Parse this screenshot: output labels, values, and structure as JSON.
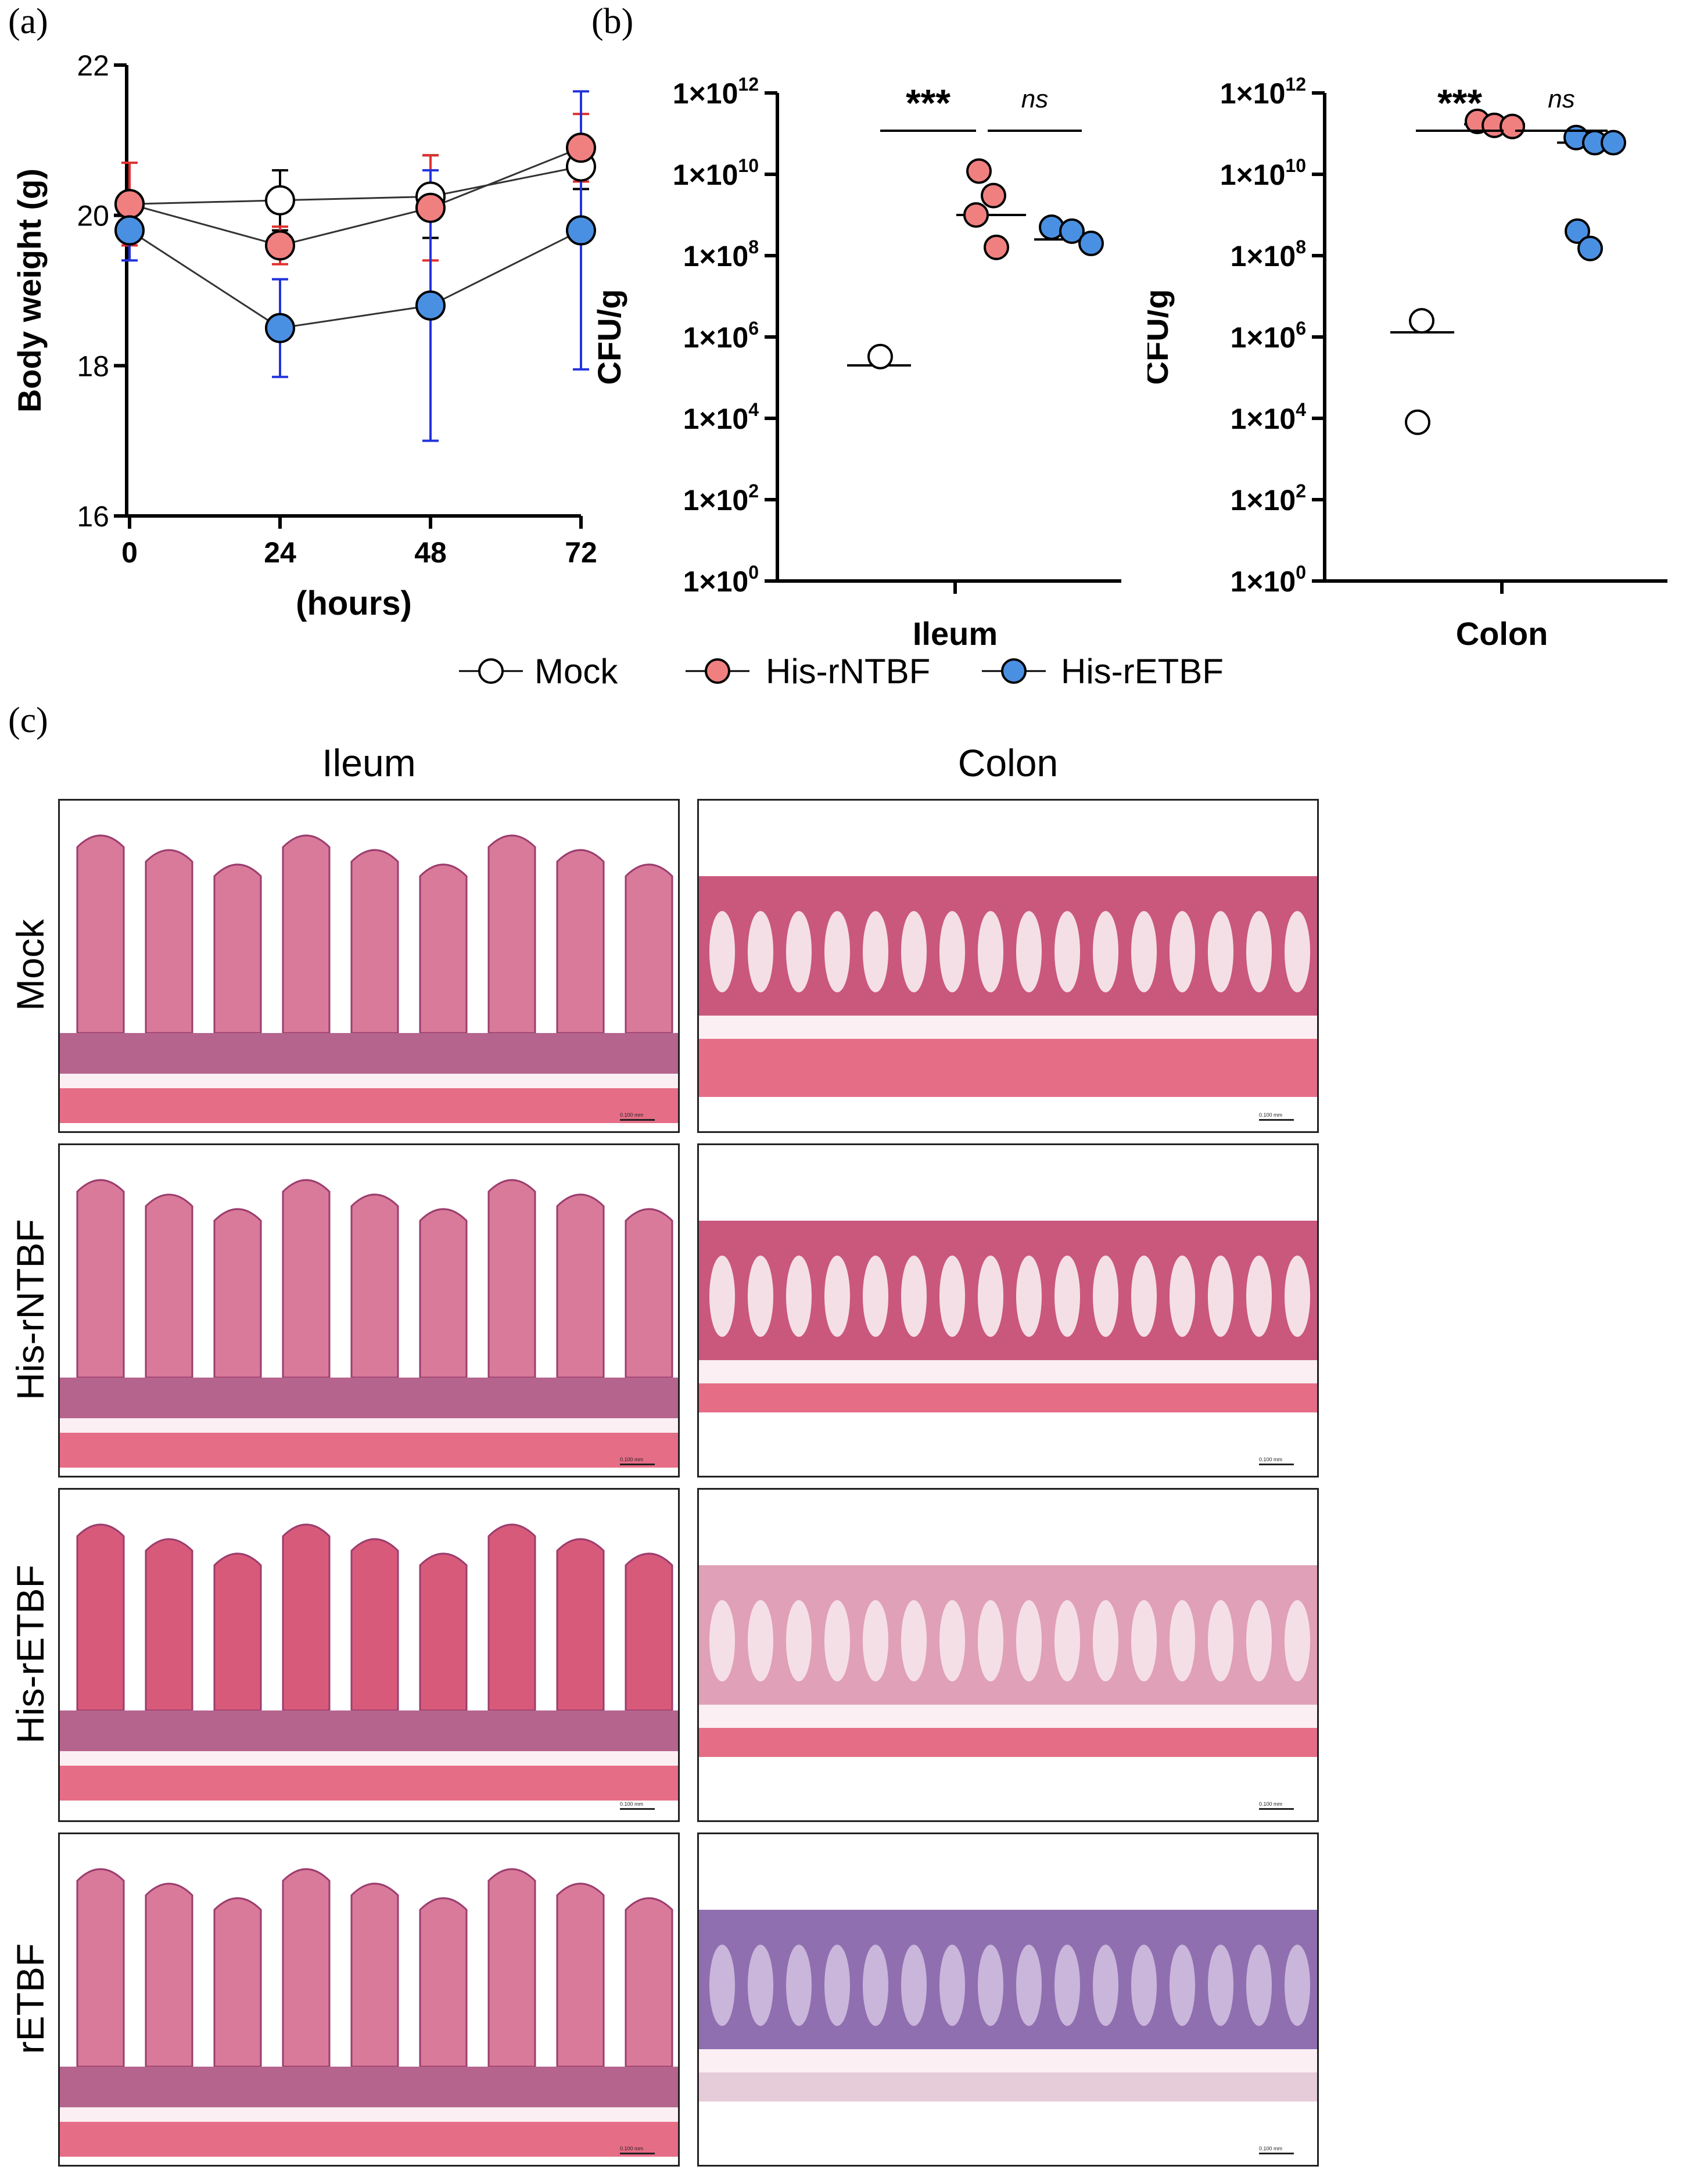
{
  "panels": {
    "a": "(a)",
    "b": "(b)",
    "c": "(c)"
  },
  "chart_data": [
    {
      "type": "line",
      "panel": "(a)",
      "ylabel": "Body weight (g)",
      "xlabel": "(hours)",
      "x": [
        0,
        24,
        48,
        72
      ],
      "xticks": [
        "0",
        "24",
        "48",
        "72"
      ],
      "yticks": [
        "16",
        "18",
        "20",
        "22"
      ],
      "ylim": [
        16,
        22
      ],
      "series": [
        {
          "name": "Mock",
          "color": "#ffffff",
          "errcolor": "#000000",
          "values": [
            20.15,
            20.2,
            20.25,
            20.65
          ],
          "err": [
            0.05,
            0.4,
            0.55,
            0.3
          ]
        },
        {
          "name": "His-rNTBF",
          "color": "#f08080",
          "errcolor": "#e03030",
          "values": [
            20.15,
            19.6,
            20.1,
            20.9
          ],
          "err": [
            0.55,
            0.25,
            0.7,
            0.45
          ]
        },
        {
          "name": "His-rETBF",
          "color": "#4a90e2",
          "errcolor": "#2233dd",
          "values": [
            19.8,
            18.5,
            18.8,
            19.8
          ],
          "err": [
            0.4,
            0.65,
            1.8,
            1.85
          ]
        }
      ]
    },
    {
      "type": "scatter",
      "panel": "(b)",
      "xlabel": "Ileum",
      "ylabel": "CFU/g",
      "yscale": "log10",
      "ylim": [
        1,
        1000000000000.0
      ],
      "yticks": [
        "1×10^0",
        "1×10^2",
        "1×10^4",
        "1×10^6",
        "1×10^8",
        "1×10^10",
        "1×10^12"
      ],
      "groups": [
        {
          "name": "Mock",
          "points": [
            330000
          ],
          "mean": 200000
        },
        {
          "name": "His-rNTBF",
          "points": [
            12000000000.0,
            3000000000.0,
            1000000000.0,
            160000000.0
          ],
          "mean": 1000000000.0
        },
        {
          "name": "His-rETBF",
          "points": [
            500000000.0,
            400000000.0,
            200000000.0
          ],
          "mean": 250000000.0
        }
      ],
      "significance": [
        {
          "label": "***",
          "between": [
            "Mock",
            "His-rNTBF"
          ]
        },
        {
          "label": "ns",
          "between": [
            "His-rNTBF",
            "His-rETBF"
          ]
        }
      ]
    },
    {
      "type": "scatter",
      "panel": "(b)",
      "xlabel": "Colon",
      "ylabel": "CFU/g",
      "yscale": "log10",
      "ylim": [
        1,
        1000000000000.0
      ],
      "yticks": [
        "1×10^0",
        "1×10^2",
        "1×10^4",
        "1×10^6",
        "1×10^8",
        "1×10^10",
        "1×10^12"
      ],
      "groups": [
        {
          "name": "Mock",
          "points": [
            2500000.0,
            8000
          ],
          "mean": 1300000.0
        },
        {
          "name": "His-rNTBF",
          "points": [
            200000000000.0,
            160000000000.0,
            150000000000.0
          ],
          "mean": 170000000000.0
        },
        {
          "name": "His-rETBF",
          "points": [
            80000000000.0,
            60000000000.0,
            60000000000.0,
            400000000.0,
            150000000.0
          ],
          "mean": 60000000000.0
        }
      ],
      "significance": [
        {
          "label": "***",
          "between": [
            "Mock",
            "His-rNTBF"
          ]
        },
        {
          "label": "ns",
          "between": [
            "His-rNTBF",
            "His-rETBF"
          ]
        }
      ]
    }
  ],
  "legend": [
    {
      "label": "Mock",
      "color": "#ffffff"
    },
    {
      "label": "His-rNTBF",
      "color": "#f08080"
    },
    {
      "label": "His-rETBF",
      "color": "#4a90e2"
    }
  ],
  "histology": {
    "columns": [
      "Ileum",
      "Colon"
    ],
    "rows": [
      "Mock",
      "His-rNTBF",
      "His-rETBF",
      "rETBF"
    ],
    "scale_label": "0.100 mm"
  }
}
